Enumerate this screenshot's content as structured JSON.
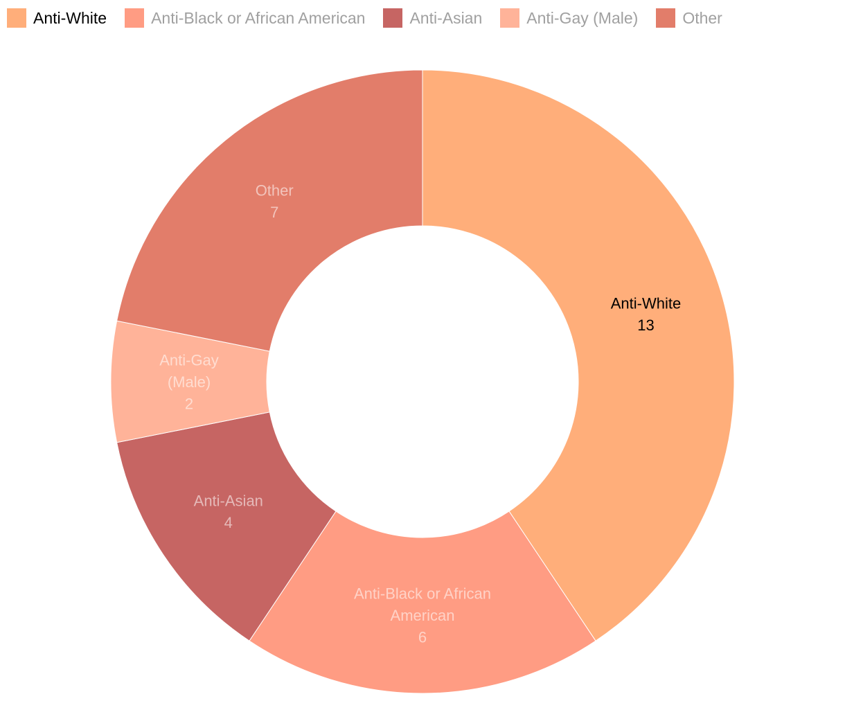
{
  "chart_data": {
    "type": "pie",
    "variant": "donut",
    "categories": [
      "Anti-White",
      "Anti-Black or African American",
      "Anti-Asian",
      "Anti-Gay (Male)",
      "Other"
    ],
    "values": [
      13,
      6,
      4,
      2,
      7
    ],
    "colors": [
      "#ffae7a",
      "#ff9c83",
      "#c66563",
      "#ffb399",
      "#e27d6a"
    ],
    "label_lines": [
      [
        "Anti-White",
        "13"
      ],
      [
        "Anti-Black or African",
        "American",
        "6"
      ],
      [
        "Anti-Asian",
        "4"
      ],
      [
        "Anti-Gay",
        "(Male)",
        "2"
      ],
      [
        "Other",
        "7"
      ]
    ],
    "highlighted": "Anti-White",
    "legend_position": "top-left",
    "title": "",
    "xlabel": "",
    "ylabel": ""
  },
  "legend": {
    "items": [
      {
        "label": "Anti-White",
        "color": "#ffae7a",
        "active": true
      },
      {
        "label": "Anti-Black or African American",
        "color": "#ff9c83",
        "active": false
      },
      {
        "label": "Anti-Asian",
        "color": "#c66563",
        "active": false
      },
      {
        "label": "Anti-Gay (Male)",
        "color": "#ffb399",
        "active": false
      },
      {
        "label": "Other",
        "color": "#e27d6a",
        "active": false
      }
    ]
  }
}
